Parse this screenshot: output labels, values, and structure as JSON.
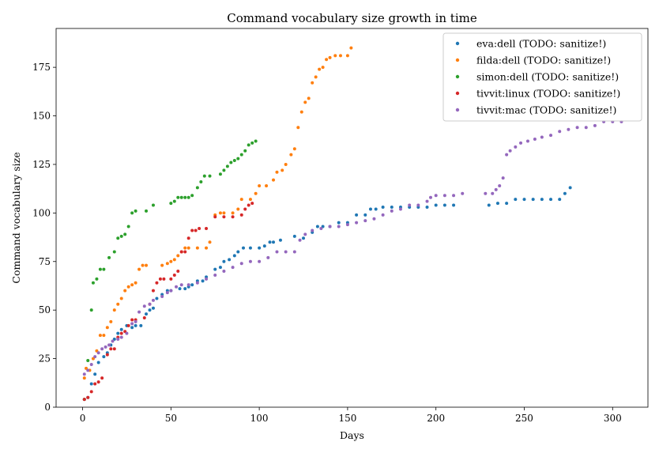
{
  "chart_data": {
    "type": "scatter",
    "title": "Command vocabulary size growth in time",
    "xlabel": "Days",
    "ylabel": "Command vocabulary size",
    "xlim": [
      -15,
      320
    ],
    "ylim": [
      0,
      195
    ],
    "xticks": [
      0,
      50,
      100,
      150,
      200,
      250,
      300
    ],
    "yticks": [
      0,
      25,
      50,
      75,
      100,
      125,
      150,
      175
    ],
    "grid": false,
    "legend_position": "top-right",
    "series": [
      {
        "name": "eva:dell (TODO: sanitize!)",
        "color": "#1f77b4",
        "points": [
          [
            1,
            4
          ],
          [
            3,
            5
          ],
          [
            5,
            12
          ],
          [
            7,
            17
          ],
          [
            9,
            23
          ],
          [
            12,
            26
          ],
          [
            14,
            28
          ],
          [
            16,
            32
          ],
          [
            18,
            35
          ],
          [
            20,
            38
          ],
          [
            22,
            40
          ],
          [
            25,
            42
          ],
          [
            28,
            41
          ],
          [
            30,
            42
          ],
          [
            33,
            42
          ],
          [
            36,
            48
          ],
          [
            38,
            50
          ],
          [
            40,
            51
          ],
          [
            42,
            56
          ],
          [
            45,
            58
          ],
          [
            48,
            60
          ],
          [
            50,
            60
          ],
          [
            55,
            61
          ],
          [
            58,
            61
          ],
          [
            60,
            62
          ],
          [
            62,
            63
          ],
          [
            65,
            65
          ],
          [
            68,
            65
          ],
          [
            70,
            67
          ],
          [
            75,
            71
          ],
          [
            78,
            72
          ],
          [
            80,
            75
          ],
          [
            83,
            76
          ],
          [
            86,
            78
          ],
          [
            88,
            80
          ],
          [
            91,
            82
          ],
          [
            95,
            82
          ],
          [
            100,
            82
          ],
          [
            103,
            83
          ],
          [
            106,
            85
          ],
          [
            108,
            85
          ],
          [
            112,
            86
          ],
          [
            120,
            88
          ],
          [
            125,
            87
          ],
          [
            130,
            90
          ],
          [
            133,
            93
          ],
          [
            136,
            93
          ],
          [
            140,
            93
          ],
          [
            145,
            95
          ],
          [
            150,
            95
          ],
          [
            155,
            99
          ],
          [
            160,
            99
          ],
          [
            163,
            102
          ],
          [
            166,
            102
          ],
          [
            170,
            103
          ],
          [
            175,
            103
          ],
          [
            180,
            103
          ],
          [
            185,
            103
          ],
          [
            190,
            103
          ],
          [
            195,
            103
          ],
          [
            200,
            104
          ],
          [
            205,
            104
          ],
          [
            210,
            104
          ],
          [
            230,
            104
          ],
          [
            235,
            105
          ],
          [
            240,
            105
          ],
          [
            245,
            107
          ],
          [
            250,
            107
          ],
          [
            255,
            107
          ],
          [
            260,
            107
          ],
          [
            265,
            107
          ],
          [
            270,
            107
          ],
          [
            273,
            110
          ],
          [
            276,
            113
          ]
        ]
      },
      {
        "name": "filda:dell (TODO: sanitize!)",
        "color": "#ff7f0e",
        "points": [
          [
            1,
            15
          ],
          [
            2,
            20
          ],
          [
            4,
            19
          ],
          [
            6,
            25
          ],
          [
            8,
            29
          ],
          [
            10,
            37
          ],
          [
            12,
            37
          ],
          [
            14,
            41
          ],
          [
            16,
            44
          ],
          [
            18,
            50
          ],
          [
            20,
            53
          ],
          [
            22,
            56
          ],
          [
            24,
            60
          ],
          [
            26,
            62
          ],
          [
            28,
            63
          ],
          [
            30,
            64
          ],
          [
            32,
            71
          ],
          [
            34,
            73
          ],
          [
            36,
            73
          ],
          [
            45,
            73
          ],
          [
            48,
            74
          ],
          [
            50,
            75
          ],
          [
            52,
            76
          ],
          [
            54,
            78
          ],
          [
            56,
            80
          ],
          [
            58,
            82
          ],
          [
            60,
            82
          ],
          [
            65,
            82
          ],
          [
            70,
            82
          ],
          [
            72,
            85
          ],
          [
            75,
            99
          ],
          [
            78,
            100
          ],
          [
            80,
            100
          ],
          [
            85,
            100
          ],
          [
            88,
            102
          ],
          [
            90,
            107
          ],
          [
            95,
            107
          ],
          [
            98,
            110
          ],
          [
            100,
            114
          ],
          [
            104,
            114
          ],
          [
            108,
            117
          ],
          [
            110,
            121
          ],
          [
            113,
            122
          ],
          [
            115,
            125
          ],
          [
            118,
            130
          ],
          [
            120,
            133
          ],
          [
            122,
            144
          ],
          [
            124,
            152
          ],
          [
            126,
            157
          ],
          [
            128,
            159
          ],
          [
            130,
            167
          ],
          [
            132,
            170
          ],
          [
            134,
            174
          ],
          [
            136,
            175
          ],
          [
            138,
            179
          ],
          [
            140,
            180
          ],
          [
            143,
            181
          ],
          [
            146,
            181
          ],
          [
            150,
            181
          ],
          [
            152,
            185
          ]
        ]
      },
      {
        "name": "simon:dell (TODO: sanitize!)",
        "color": "#2ca02c",
        "points": [
          [
            1,
            4
          ],
          [
            3,
            24
          ],
          [
            5,
            50
          ],
          [
            6,
            64
          ],
          [
            8,
            66
          ],
          [
            10,
            71
          ],
          [
            12,
            71
          ],
          [
            15,
            77
          ],
          [
            18,
            80
          ],
          [
            20,
            87
          ],
          [
            22,
            88
          ],
          [
            24,
            89
          ],
          [
            26,
            93
          ],
          [
            28,
            100
          ],
          [
            30,
            101
          ],
          [
            36,
            101
          ],
          [
            40,
            104
          ],
          [
            50,
            105
          ],
          [
            52,
            106
          ],
          [
            54,
            108
          ],
          [
            56,
            108
          ],
          [
            58,
            108
          ],
          [
            60,
            108
          ],
          [
            62,
            109
          ],
          [
            65,
            113
          ],
          [
            67,
            116
          ],
          [
            69,
            119
          ],
          [
            72,
            119
          ],
          [
            78,
            120
          ],
          [
            80,
            122
          ],
          [
            82,
            124
          ],
          [
            84,
            126
          ],
          [
            86,
            127
          ],
          [
            88,
            128
          ],
          [
            90,
            130
          ],
          [
            92,
            132
          ],
          [
            94,
            135
          ],
          [
            96,
            136
          ],
          [
            98,
            137
          ]
        ]
      },
      {
        "name": "tivvit:linux (TODO: sanitize!)",
        "color": "#d62728",
        "points": [
          [
            1,
            4
          ],
          [
            3,
            5
          ],
          [
            5,
            8
          ],
          [
            7,
            12
          ],
          [
            9,
            13
          ],
          [
            11,
            15
          ],
          [
            14,
            27
          ],
          [
            16,
            30
          ],
          [
            18,
            30
          ],
          [
            20,
            36
          ],
          [
            22,
            38
          ],
          [
            24,
            39
          ],
          [
            26,
            42
          ],
          [
            28,
            45
          ],
          [
            30,
            45
          ],
          [
            35,
            46
          ],
          [
            38,
            53
          ],
          [
            40,
            60
          ],
          [
            42,
            64
          ],
          [
            44,
            66
          ],
          [
            46,
            66
          ],
          [
            50,
            66
          ],
          [
            52,
            68
          ],
          [
            54,
            70
          ],
          [
            56,
            80
          ],
          [
            58,
            80
          ],
          [
            60,
            87
          ],
          [
            62,
            91
          ],
          [
            64,
            91
          ],
          [
            66,
            92
          ],
          [
            70,
            92
          ],
          [
            75,
            98
          ],
          [
            80,
            98
          ],
          [
            85,
            98
          ],
          [
            90,
            99
          ],
          [
            92,
            102
          ],
          [
            94,
            104
          ],
          [
            96,
            105
          ]
        ]
      },
      {
        "name": "tivvit:mac (TODO: sanitize!)",
        "color": "#9467bd",
        "points": [
          [
            1,
            17
          ],
          [
            3,
            19
          ],
          [
            5,
            22
          ],
          [
            7,
            26
          ],
          [
            9,
            28
          ],
          [
            11,
            30
          ],
          [
            13,
            31
          ],
          [
            15,
            32
          ],
          [
            17,
            34
          ],
          [
            20,
            35
          ],
          [
            22,
            36
          ],
          [
            25,
            38
          ],
          [
            28,
            43
          ],
          [
            30,
            44
          ],
          [
            32,
            49
          ],
          [
            35,
            52
          ],
          [
            38,
            53
          ],
          [
            40,
            55
          ],
          [
            45,
            57
          ],
          [
            48,
            59
          ],
          [
            50,
            60
          ],
          [
            53,
            62
          ],
          [
            56,
            63
          ],
          [
            60,
            63
          ],
          [
            65,
            64
          ],
          [
            70,
            66
          ],
          [
            75,
            68
          ],
          [
            80,
            70
          ],
          [
            85,
            72
          ],
          [
            90,
            74
          ],
          [
            95,
            75
          ],
          [
            100,
            75
          ],
          [
            105,
            77
          ],
          [
            110,
            80
          ],
          [
            115,
            80
          ],
          [
            120,
            80
          ],
          [
            123,
            86
          ],
          [
            126,
            89
          ],
          [
            130,
            91
          ],
          [
            135,
            92
          ],
          [
            140,
            93
          ],
          [
            145,
            93
          ],
          [
            150,
            94
          ],
          [
            155,
            95
          ],
          [
            160,
            96
          ],
          [
            165,
            97
          ],
          [
            170,
            99
          ],
          [
            175,
            101
          ],
          [
            180,
            102
          ],
          [
            185,
            104
          ],
          [
            190,
            104
          ],
          [
            195,
            106
          ],
          [
            197,
            108
          ],
          [
            200,
            109
          ],
          [
            205,
            109
          ],
          [
            210,
            109
          ],
          [
            215,
            110
          ],
          [
            228,
            110
          ],
          [
            232,
            110
          ],
          [
            234,
            112
          ],
          [
            236,
            114
          ],
          [
            238,
            118
          ],
          [
            240,
            130
          ],
          [
            242,
            132
          ],
          [
            245,
            134
          ],
          [
            248,
            136
          ],
          [
            252,
            137
          ],
          [
            256,
            138
          ],
          [
            260,
            139
          ],
          [
            265,
            140
          ],
          [
            270,
            142
          ],
          [
            275,
            143
          ],
          [
            280,
            144
          ],
          [
            285,
            144
          ],
          [
            290,
            145
          ],
          [
            295,
            147
          ],
          [
            300,
            147
          ],
          [
            305,
            147
          ]
        ]
      }
    ]
  }
}
